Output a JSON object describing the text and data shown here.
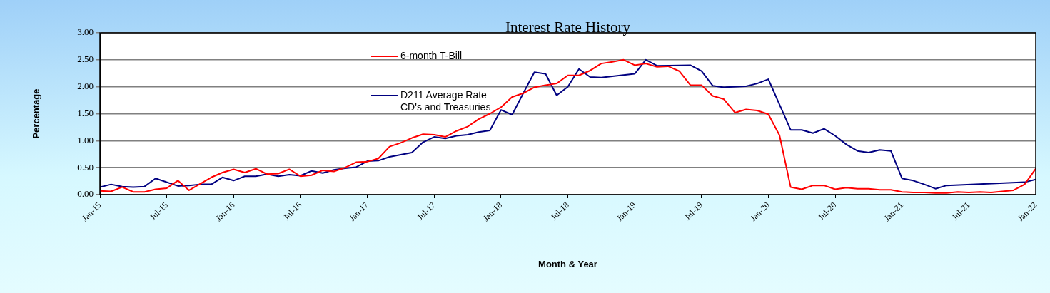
{
  "chart_data": {
    "type": "line",
    "title": "Interest Rate History",
    "xlabel": "Month & Year",
    "ylabel": "Percentage",
    "xlim": [
      "2015-01",
      "2022-01"
    ],
    "xticks": [
      {
        "value": "2015-01",
        "label": "Jan-15"
      },
      {
        "value": "2015-07",
        "label": "Jul-15"
      },
      {
        "value": "2016-01",
        "label": "Jan-16"
      },
      {
        "value": "2016-07",
        "label": "Jul-16"
      },
      {
        "value": "2017-01",
        "label": "Jan-17"
      },
      {
        "value": "2017-07",
        "label": "Jul-17"
      },
      {
        "value": "2018-01",
        "label": "Jan-18"
      },
      {
        "value": "2018-07",
        "label": "Jul-18"
      },
      {
        "value": "2019-01",
        "label": "Jan-19"
      },
      {
        "value": "2019-07",
        "label": "Jul-19"
      },
      {
        "value": "2020-01",
        "label": "Jan-20"
      },
      {
        "value": "2020-07",
        "label": "Jul-20"
      },
      {
        "value": "2021-01",
        "label": "Jan-21"
      },
      {
        "value": "2021-07",
        "label": "Jul-21"
      },
      {
        "value": "2022-01",
        "label": "Jan-22"
      }
    ],
    "ylim": [
      0,
      3
    ],
    "yticks": [
      {
        "value": 0,
        "label": "0.00"
      },
      {
        "value": 0.5,
        "label": "0.50"
      },
      {
        "value": 1,
        "label": "1.00"
      },
      {
        "value": 1.5,
        "label": "1.50"
      },
      {
        "value": 2,
        "label": "2.00"
      },
      {
        "value": 2.5,
        "label": "2.50"
      },
      {
        "value": 3,
        "label": "3.00"
      }
    ],
    "grid": "y",
    "legend": "top",
    "marker": "none",
    "line_style": "solid",
    "series": [
      {
        "name": "6-month T-Bill",
        "color": "#ff0000",
        "x": [
          "2015-01",
          "2015-02",
          "2015-03",
          "2015-04",
          "2015-05",
          "2015-06",
          "2015-07",
          "2015-08",
          "2015-09",
          "2015-10",
          "2015-11",
          "2015-12",
          "2016-01",
          "2016-02",
          "2016-03",
          "2016-04",
          "2016-05",
          "2016-06",
          "2016-07",
          "2016-08",
          "2016-09",
          "2016-10",
          "2016-11",
          "2016-12",
          "2017-01",
          "2017-02",
          "2017-03",
          "2017-04",
          "2017-05",
          "2017-06",
          "2017-07",
          "2017-08",
          "2017-09",
          "2017-10",
          "2017-11",
          "2017-12",
          "2018-01",
          "2018-02",
          "2018-03",
          "2018-04",
          "2018-05",
          "2018-06",
          "2018-07",
          "2018-08",
          "2018-09",
          "2018-10",
          "2018-11",
          "2018-12",
          "2019-01",
          "2019-02",
          "2019-03",
          "2019-04",
          "2019-05",
          "2019-06",
          "2019-07",
          "2019-08",
          "2019-09",
          "2019-10",
          "2019-11",
          "2019-12",
          "2020-01",
          "2020-02",
          "2020-03",
          "2020-04",
          "2020-05",
          "2020-06",
          "2020-07",
          "2020-08",
          "2020-09",
          "2020-10",
          "2020-11",
          "2020-12",
          "2021-01",
          "2021-02",
          "2021-03",
          "2021-04",
          "2021-05",
          "2021-06",
          "2021-07",
          "2021-08",
          "2021-09",
          "2021-10",
          "2021-11",
          "2021-12",
          "2022-01"
        ],
        "values": [
          0.07,
          0.06,
          0.14,
          0.05,
          0.05,
          0.1,
          0.12,
          0.26,
          0.08,
          0.2,
          0.32,
          0.41,
          0.47,
          0.41,
          0.48,
          0.38,
          0.39,
          0.47,
          0.34,
          0.36,
          0.45,
          0.43,
          0.5,
          0.6,
          0.61,
          0.67,
          0.89,
          0.96,
          1.05,
          1.12,
          1.11,
          1.07,
          1.18,
          1.26,
          1.4,
          1.5,
          1.62,
          1.81,
          1.88,
          1.99,
          2.03,
          2.06,
          2.21,
          2.21,
          2.3,
          2.43,
          2.46,
          2.5,
          2.4,
          2.43,
          2.37,
          2.38,
          2.29,
          2.03,
          2.03,
          1.83,
          1.77,
          1.52,
          1.58,
          1.56,
          1.49,
          1.1,
          0.14,
          0.1,
          0.17,
          0.17,
          0.1,
          0.13,
          0.11,
          0.11,
          0.09,
          0.09,
          0.05,
          0.04,
          0.04,
          0.03,
          0.03,
          0.05,
          0.04,
          0.05,
          0.04,
          0.06,
          0.08,
          0.19,
          0.48
        ]
      },
      {
        "name": "D211 Average Rate CD's and Treasuries",
        "color": "#000080",
        "x": [
          "2015-01",
          "2015-02",
          "2015-03",
          "2015-04",
          "2015-05",
          "2015-06",
          "2015-08",
          "2015-09",
          "2015-10",
          "2015-11",
          "2015-12",
          "2016-01",
          "2016-02",
          "2016-03",
          "2016-04",
          "2016-05",
          "2016-06",
          "2016-07",
          "2016-08",
          "2016-09",
          "2016-10",
          "2016-11",
          "2016-12",
          "2017-01",
          "2017-02",
          "2017-03",
          "2017-04",
          "2017-05",
          "2017-06",
          "2017-07",
          "2017-08",
          "2017-09",
          "2017-10",
          "2017-11",
          "2017-12",
          "2018-01",
          "2018-02",
          "2018-03",
          "2018-04",
          "2018-05",
          "2018-06",
          "2018-07",
          "2018-08",
          "2018-09",
          "2018-10",
          "2019-01",
          "2019-02",
          "2019-03",
          "2019-06",
          "2019-07",
          "2019-08",
          "2019-09",
          "2019-11",
          "2019-12",
          "2020-01",
          "2020-03",
          "2020-04",
          "2020-05",
          "2020-06",
          "2020-07",
          "2020-08",
          "2020-09",
          "2020-10",
          "2020-11",
          "2020-12",
          "2021-01",
          "2021-02",
          "2021-03",
          "2021-04",
          "2021-05",
          "2021-12",
          "2022-01"
        ],
        "values": [
          0.14,
          0.19,
          0.15,
          0.14,
          0.15,
          0.3,
          0.16,
          0.17,
          0.19,
          0.19,
          0.32,
          0.26,
          0.34,
          0.34,
          0.38,
          0.34,
          0.37,
          0.35,
          0.44,
          0.4,
          0.46,
          0.49,
          0.51,
          0.62,
          0.63,
          0.7,
          0.74,
          0.78,
          0.97,
          1.07,
          1.04,
          1.09,
          1.11,
          1.16,
          1.19,
          1.57,
          1.48,
          1.88,
          2.27,
          2.24,
          1.84,
          2.0,
          2.33,
          2.18,
          2.17,
          2.24,
          2.5,
          2.39,
          2.4,
          2.29,
          2.02,
          1.99,
          2.01,
          2.06,
          2.14,
          1.2,
          1.2,
          1.14,
          1.22,
          1.09,
          0.93,
          0.81,
          0.78,
          0.83,
          0.81,
          0.3,
          0.26,
          0.19,
          0.11,
          0.17,
          0.23,
          0.28
        ]
      }
    ]
  }
}
